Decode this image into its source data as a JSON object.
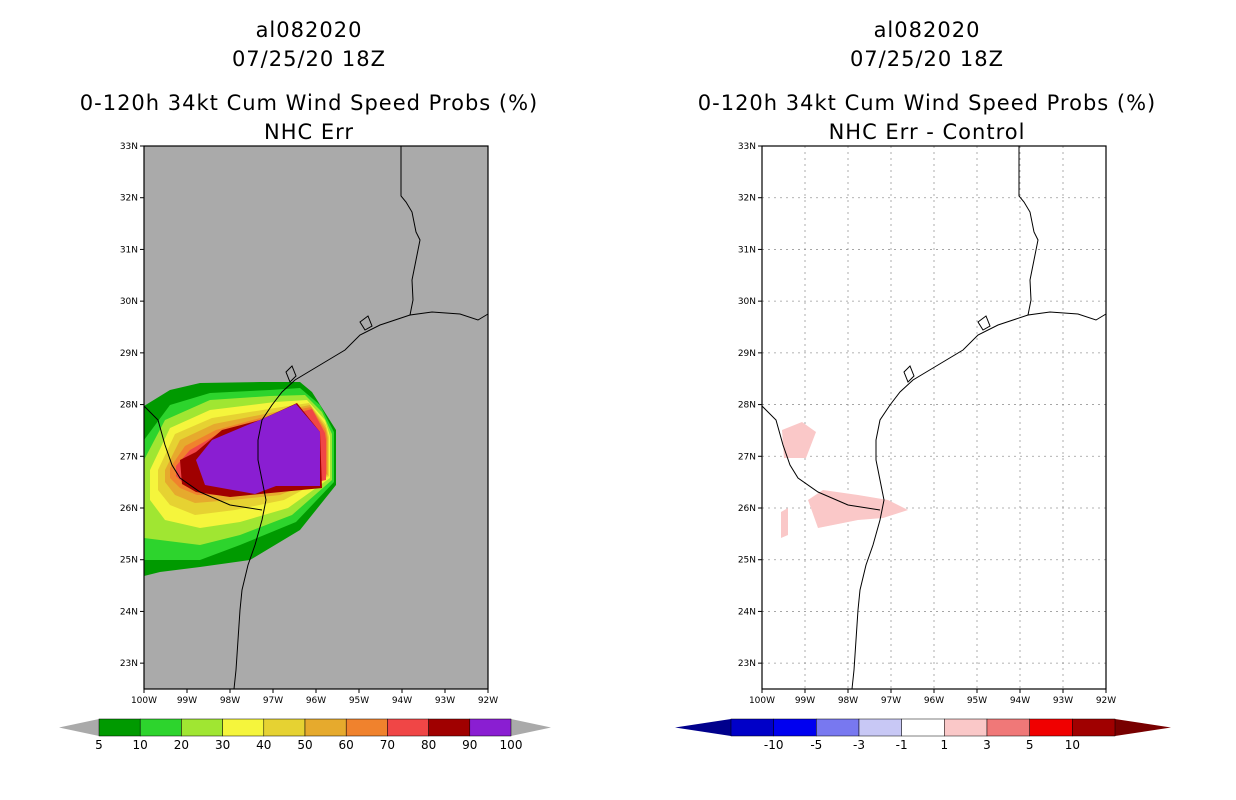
{
  "left_panel": {
    "storm_id": "al082020",
    "datetime": "07/25/20 18Z",
    "product": "0-120h 34kt Cum Wind Speed Probs (%)",
    "subtitle": "NHC Err",
    "background_color": "#aaaaaa",
    "colorbar": {
      "labels": [
        "5",
        "10",
        "20",
        "30",
        "40",
        "50",
        "60",
        "70",
        "80",
        "90",
        "100"
      ],
      "colors": [
        "#009a00",
        "#2dd42d",
        "#a0e632",
        "#f5f53c",
        "#e6d232",
        "#e6aa2d",
        "#f0822d",
        "#f04646",
        "#a00000",
        "#8a1ed2"
      ],
      "under_color": "#aaaaaa",
      "over_color": "#aaaaaa"
    }
  },
  "right_panel": {
    "storm_id": "al082020",
    "datetime": "07/25/20 18Z",
    "product": "0-120h 34kt Cum Wind Speed Probs (%)",
    "subtitle": "NHC Err - Control",
    "background_color": "#ffffff",
    "colorbar": {
      "labels": [
        "-10",
        "-5",
        "-3",
        "-1",
        "1",
        "3",
        "5",
        "10"
      ],
      "colors": [
        "#0000c8",
        "#0000f0",
        "#7878f0",
        "#c8c8f5",
        "#ffffff",
        "#fac8c8",
        "#f07878",
        "#f00000",
        "#a00000"
      ],
      "under_color": "#00008c",
      "over_color": "#780000"
    }
  },
  "axes": {
    "lat_labels": [
      "33N",
      "32N",
      "31N",
      "30N",
      "29N",
      "28N",
      "27N",
      "26N",
      "25N",
      "24N",
      "23N"
    ],
    "lon_labels": [
      "100W",
      "99W",
      "98W",
      "97W",
      "96W",
      "95W",
      "94W",
      "93W",
      "92W"
    ]
  }
}
